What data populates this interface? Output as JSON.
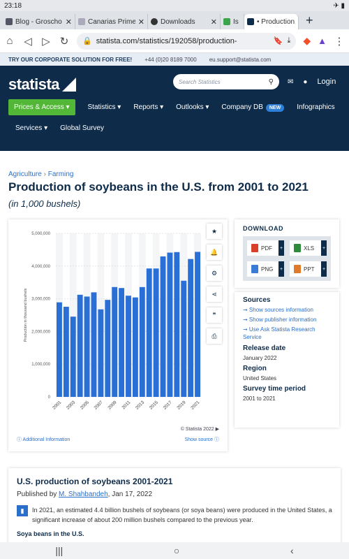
{
  "status": {
    "time": "23:18",
    "right": "✈ ▮"
  },
  "tabs": [
    {
      "title": "Blog - Groscho",
      "icon": "blog-favicon"
    },
    {
      "title": "Canarias Prime",
      "icon": "doc-favicon"
    },
    {
      "title": "Downloads",
      "icon": "shield-favicon"
    },
    {
      "title": "Is C",
      "icon": "green-favicon"
    },
    {
      "title": "• Production of",
      "icon": "statista-favicon",
      "active": true
    }
  ],
  "browser": {
    "url": "statista.com/statistics/192058/production-"
  },
  "corp_bar": {
    "text": "TRY OUR CORPORATE SOLUTION FOR FREE!",
    "phone": "+44 (0)20 8189 7000",
    "email": "eu.support@statista.com"
  },
  "header": {
    "logo": "statista",
    "search_placeholder": "Search Statistics",
    "login": "Login",
    "menu": [
      "Prices & Access ▾",
      "Statistics ▾",
      "Reports ▾",
      "Outlooks ▾",
      "Company DB",
      "Infographics"
    ],
    "new_badge": "NEW",
    "menu2": [
      "Services ▾",
      "Global Survey"
    ]
  },
  "breadcrumb": {
    "a": "Agriculture",
    "sep": "›",
    "b": "Farming"
  },
  "title": "Production of soybeans in the U.S. from 2001 to 2021",
  "subtitle": "(in 1,000 bushels)",
  "chart_data": {
    "type": "bar",
    "categories": [
      "2001",
      "2002",
      "2003",
      "2004",
      "2005",
      "2006",
      "2007",
      "2008",
      "2009",
      "2010",
      "2011",
      "2012",
      "2013",
      "2014",
      "2015",
      "2016",
      "2017",
      "2018",
      "2019",
      "2020",
      "2021"
    ],
    "values": [
      2891000,
      2756000,
      2454000,
      3124000,
      3068000,
      3197000,
      2677000,
      2967000,
      3359000,
      3329000,
      3094000,
      3042000,
      3358000,
      3927000,
      3926000,
      4296000,
      4412000,
      4428000,
      3552000,
      4216000,
      4435000
    ],
    "tick_labels_x": [
      "2001",
      "2003",
      "2005",
      "2007",
      "2009",
      "2011",
      "2013",
      "2015",
      "2017",
      "2019",
      "2021"
    ],
    "ylabel": "Production in thousand bushels",
    "ylim": [
      0,
      5000000
    ],
    "yticks": [
      "0",
      "1,000,000",
      "2,000,000",
      "3,000,000",
      "4,000,000",
      "5,000,000"
    ],
    "color": "#2a6fd6",
    "grid": true
  },
  "chart_footer": {
    "copyright": "© Statista 2022 ▶",
    "additional": "ⓘ Additional Information",
    "show_source": "Show source ⓘ"
  },
  "download": {
    "title": "DOWNLOAD",
    "buttons": [
      {
        "label": "PDF",
        "color": "#d9402b"
      },
      {
        "label": "XLS",
        "color": "#2e8b3c"
      },
      {
        "label": "PNG",
        "color": "#3a7bd5"
      },
      {
        "label": "PPT",
        "color": "#e07a2a"
      }
    ],
    "plus": "+"
  },
  "info": {
    "sources_h": "Sources",
    "links": [
      "➞ Show sources information",
      "➞ Show publisher information",
      "➞ Use Ask Statista Research Service"
    ],
    "release_h": "Release date",
    "release": "January 2022",
    "region_h": "Region",
    "region": "United States",
    "period_h": "Survey time period",
    "period": "2001 to 2021"
  },
  "article": {
    "title": "U.S. production of soybeans 2001-2021",
    "published_by": "Published by",
    "author": "M. Shahbandeh",
    "date": ", Jan 17, 2022",
    "body": "In 2021, an estimated 4.4 billion bushels of soybeans (or soya beans) were produced in the United States, a significant increase of about 200 million bushels compared to the previous year.",
    "next": "Soya beans in the U.S."
  },
  "androidnav": [
    "|||",
    "○",
    "‹"
  ]
}
